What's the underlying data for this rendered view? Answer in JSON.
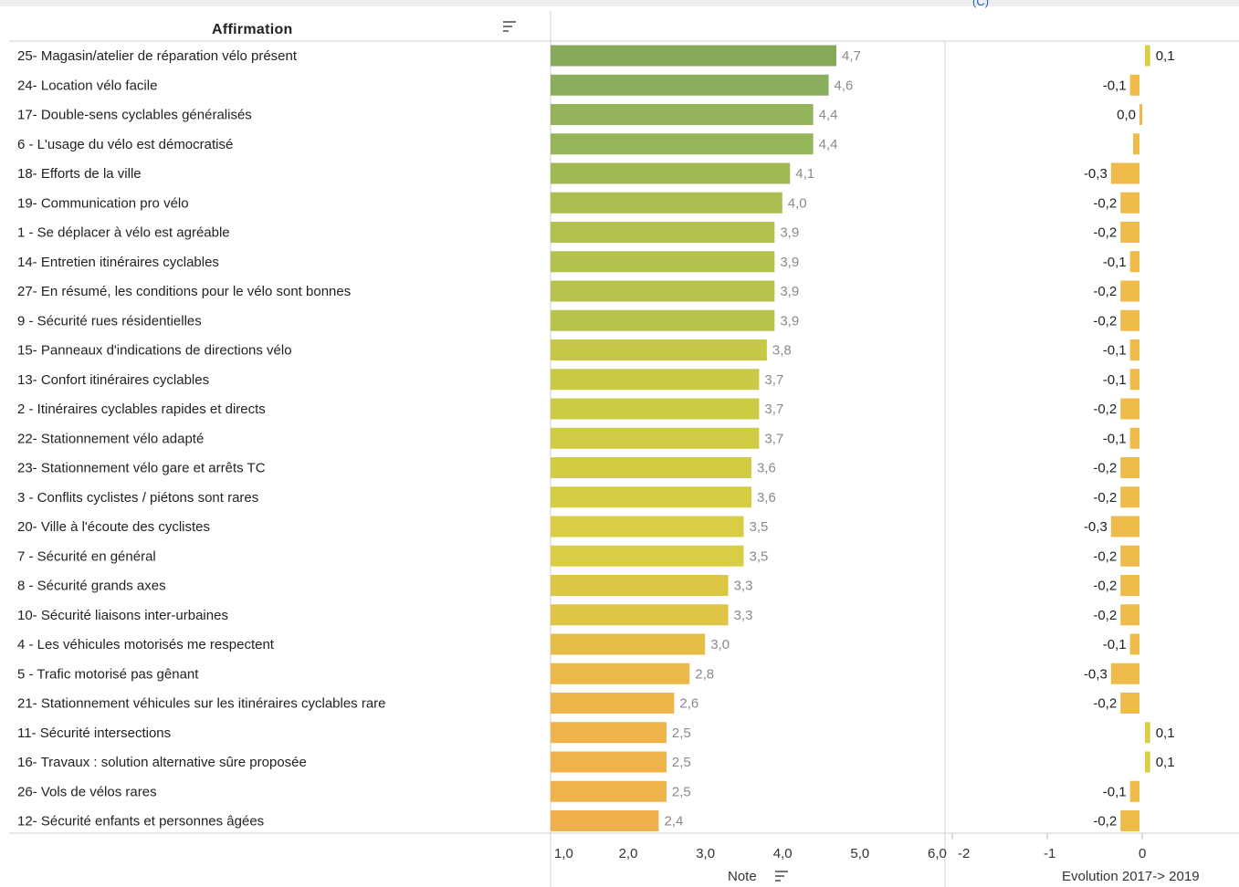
{
  "header": {
    "column_label": "Affirmation"
  },
  "note_axis": {
    "title": "Note",
    "ticks": [
      "1,0",
      "2,0",
      "3,0",
      "4,0",
      "5,0",
      "6,0"
    ]
  },
  "evolution_axis": {
    "title": "Evolution 2017-> 2019",
    "ticks": [
      "-2",
      "-1",
      "0"
    ]
  },
  "chart_data": [
    {
      "type": "bar",
      "orientation": "horizontal",
      "xlabel": "Note",
      "xlim": [
        1,
        6
      ],
      "categories": [
        "25- Magasin/atelier de réparation vélo présent",
        "24- Location vélo facile",
        "17- Double-sens cyclables généralisés",
        "6 - L'usage du vélo est démocratisé",
        "18- Efforts de la ville",
        "19- Communication pro vélo",
        "1 - Se déplacer à vélo est agréable",
        "14- Entretien itinéraires cyclables",
        "27- En résumé, les conditions pour le vélo sont bonnes",
        "9 - Sécurité rues résidentielles",
        "15- Panneaux d'indications de directions vélo",
        "13- Confort itinéraires cyclables",
        "2 - Itinéraires cyclables rapides et directs",
        "22- Stationnement vélo adapté",
        "23- Stationnement vélo gare et arrêts TC",
        "3 - Conflits cyclistes / piétons sont rares",
        "20- Ville à l'écoute des cyclistes",
        "7 - Sécurité en général",
        "8 - Sécurité grands axes",
        "10- Sécurité liaisons inter-urbaines",
        "4 - Les véhicules motorisés me respectent",
        "5 - Trafic motorisé pas gênant",
        "21- Stationnement véhicules sur les itinéraires cyclables rare",
        "11- Sécurité intersections",
        "16- Travaux : solution alternative sûre proposée",
        "26- Vols de vélos rares",
        "12- Sécurité enfants et personnes âgées"
      ],
      "values": [
        4.7,
        4.6,
        4.4,
        4.4,
        4.1,
        4.0,
        3.9,
        3.9,
        3.9,
        3.9,
        3.8,
        3.7,
        3.7,
        3.7,
        3.6,
        3.6,
        3.5,
        3.5,
        3.3,
        3.3,
        3.0,
        2.8,
        2.6,
        2.5,
        2.5,
        2.5,
        2.4
      ],
      "value_labels": [
        "4,7",
        "4,6",
        "4,4",
        "4,4",
        "4,1",
        "4,0",
        "3,9",
        "3,9",
        "3,9",
        "3,9",
        "3,8",
        "3,7",
        "3,7",
        "3,7",
        "3,6",
        "3,6",
        "3,5",
        "3,5",
        "3,3",
        "3,3",
        "3,0",
        "2,8",
        "2,6",
        "2,5",
        "2,5",
        "2,5",
        "2,4"
      ],
      "colors": [
        "#86a95c",
        "#89ad5c",
        "#93b35a",
        "#95b55a",
        "#a0b955",
        "#adbd4f",
        "#b2c04d",
        "#b5c14d",
        "#b7c24c",
        "#b9c34b",
        "#c5c846",
        "#c8c944",
        "#cbca43",
        "#cfcb42",
        "#d2cc42",
        "#d4cd42",
        "#d9cd43",
        "#d9cd43",
        "#dec645",
        "#e0c446",
        "#e6bd48",
        "#ebb84a",
        "#eeb54b",
        "#efb34b",
        "#efb34b",
        "#efb34b",
        "#f0b14c"
      ],
      "grid": false
    },
    {
      "type": "bar",
      "orientation": "horizontal",
      "xlabel": "Evolution 2017-> 2019",
      "xlim": [
        -2,
        0.3
      ],
      "values": [
        0.1,
        -0.1,
        0.0,
        -0.02,
        -0.3,
        -0.2,
        -0.2,
        -0.1,
        -0.2,
        -0.2,
        -0.1,
        -0.1,
        -0.2,
        -0.1,
        -0.2,
        -0.2,
        -0.3,
        -0.2,
        -0.2,
        -0.2,
        -0.1,
        -0.3,
        -0.2,
        0.1,
        0.1,
        -0.1,
        -0.2
      ],
      "value_labels": [
        "0,1",
        "-0,1",
        "0,0",
        "",
        "-0,3",
        "-0,2",
        "-0,2",
        "-0,1",
        "-0,2",
        "-0,2",
        "-0,1",
        "-0,1",
        "-0,2",
        "-0,1",
        "-0,2",
        "-0,2",
        "-0,3",
        "-0,2",
        "-0,2",
        "-0,2",
        "-0,1",
        "-0,3",
        "-0,2",
        "0,1",
        "0,1",
        "-0,1",
        "-0,2"
      ],
      "colors": {
        "positive": "#d8cf45",
        "negative": "#efbc4b"
      },
      "grid": false
    }
  ]
}
